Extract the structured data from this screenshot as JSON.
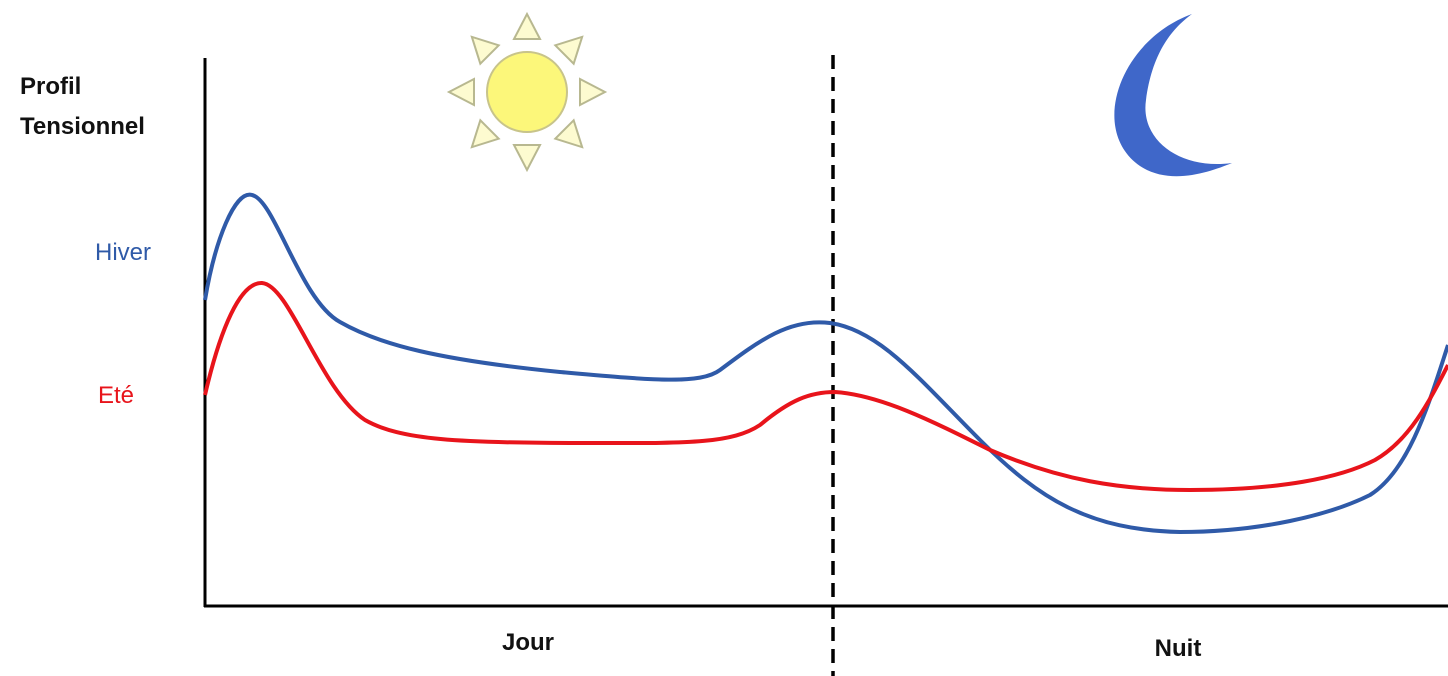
{
  "y_axis": {
    "label_lines": [
      "Profil",
      "Tensionnel"
    ]
  },
  "curves": [
    {
      "label": "Hiver"
    },
    {
      "label": "Eté"
    }
  ],
  "periods": [
    {
      "label": "Jour"
    },
    {
      "label": "Nuit"
    }
  ]
}
